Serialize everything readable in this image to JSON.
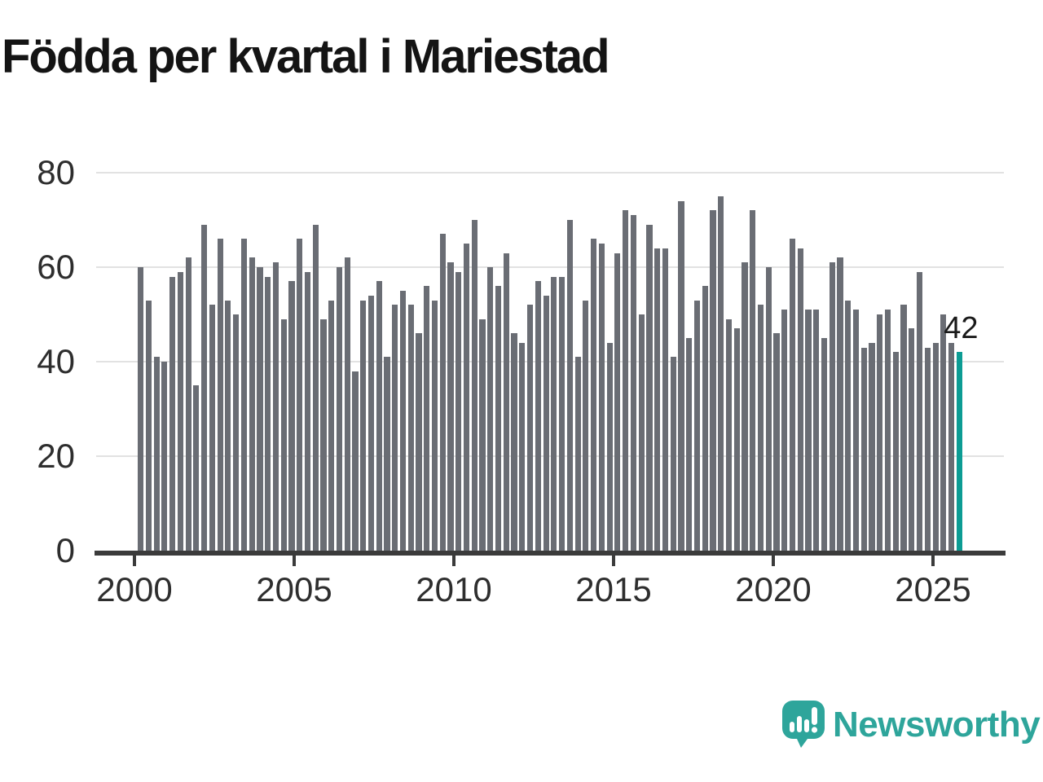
{
  "title": "Födda per kvartal i Mariestad",
  "chart_data": {
    "type": "bar",
    "title": "Födda per kvartal i Mariestad",
    "xlabel": "",
    "ylabel": "",
    "start_year": 2000,
    "frequency": "quarterly",
    "values": [
      60,
      53,
      41,
      40,
      58,
      59,
      62,
      35,
      69,
      52,
      66,
      53,
      50,
      66,
      62,
      60,
      58,
      61,
      49,
      57,
      66,
      59,
      69,
      49,
      53,
      60,
      62,
      38,
      53,
      54,
      57,
      41,
      52,
      55,
      52,
      46,
      56,
      53,
      67,
      61,
      59,
      65,
      70,
      49,
      60,
      56,
      63,
      46,
      44,
      52,
      57,
      54,
      58,
      58,
      70,
      41,
      53,
      66,
      65,
      44,
      63,
      72,
      71,
      50,
      69,
      64,
      64,
      41,
      74,
      45,
      53,
      56,
      72,
      75,
      49,
      47,
      61,
      72,
      52,
      60,
      46,
      51,
      66,
      64,
      51,
      51,
      45,
      61,
      62,
      53,
      51,
      43,
      44,
      50,
      51,
      42,
      52,
      47,
      59,
      43,
      44,
      50,
      44,
      42
    ],
    "x_tick_labels": [
      "2000",
      "2005",
      "2010",
      "2015",
      "2020",
      "2025"
    ],
    "y_ticks": [
      0,
      20,
      40,
      60,
      80
    ],
    "ylim": [
      0,
      83
    ],
    "grid": true,
    "legend": false,
    "bar_color": "#6a6d74",
    "highlight": {
      "index": 103,
      "quarter": "2025 Q4",
      "value": 42,
      "label": "42",
      "color": "#0c9c94"
    }
  },
  "annotation": {
    "last_value_label": "42"
  },
  "branding": {
    "name": "Newsworthy",
    "color": "#2ea59b",
    "logo_icon": "speech-bubble-bar-chart-icon"
  }
}
